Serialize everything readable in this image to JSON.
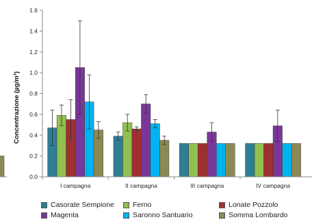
{
  "chart_data": {
    "type": "bar",
    "title": "",
    "xlabel": "",
    "ylabel": "Concentrazione (µg/m³)",
    "ylim": [
      0,
      1.6
    ],
    "yticks": [
      "0.0",
      "0.2",
      "0.4",
      "0.6",
      "0.8",
      "1.0",
      "1.2",
      "1.4",
      "1.6"
    ],
    "categories": [
      "I campagna",
      "II campagna",
      "III campagna",
      "IV campagna"
    ],
    "grid": false,
    "legend_position": "bottom",
    "series": [
      {
        "name": "Casorate Sempione",
        "color": "#2e7f96",
        "values": [
          0.47,
          0.39,
          0.32,
          0.32
        ],
        "errors": [
          0.17,
          0.04,
          null,
          null
        ]
      },
      {
        "name": "Ferno",
        "color": "#92c04e",
        "values": [
          0.59,
          0.52,
          0.32,
          0.32
        ],
        "errors": [
          0.1,
          0.08,
          null,
          null
        ]
      },
      {
        "name": "Lonate Pozzolo",
        "color": "#a03030",
        "values": [
          0.55,
          0.46,
          0.32,
          0.32
        ],
        "errors": [
          0.19,
          0.02,
          null,
          null
        ]
      },
      {
        "name": "Magenta",
        "color": "#7a3798",
        "values": [
          1.05,
          0.7,
          0.43,
          0.49
        ],
        "errors": [
          0.45,
          0.09,
          0.09,
          0.15
        ]
      },
      {
        "name": "Saronno Santuario",
        "color": "#00b4f0",
        "values": [
          0.72,
          0.51,
          0.32,
          0.32
        ],
        "errors": [
          0.26,
          0.04,
          null,
          null
        ]
      },
      {
        "name": "Somma Lombardo",
        "color": "#8b8a55",
        "values": [
          0.45,
          0.35,
          0.32,
          0.32
        ],
        "errors": [
          0.08,
          0.04,
          null,
          null
        ]
      }
    ],
    "partial_left_chart": {
      "tick": "0.0",
      "bar_value": 0.2
    }
  }
}
